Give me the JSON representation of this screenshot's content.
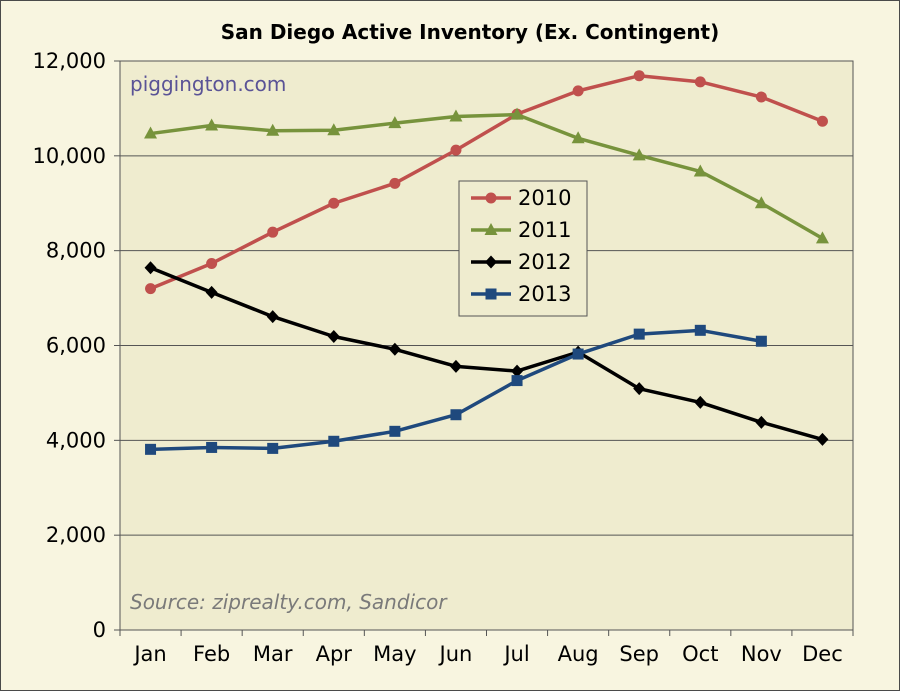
{
  "chart_data": {
    "type": "line",
    "title": "San Diego Active Inventory (Ex. Contingent)",
    "watermark": "piggington.com",
    "source_note": "Source: ziprealty.com, Sandicor",
    "categories": [
      "Jan",
      "Feb",
      "Mar",
      "Apr",
      "May",
      "Jun",
      "Jul",
      "Aug",
      "Sep",
      "Oct",
      "Nov",
      "Dec"
    ],
    "ylim": [
      0,
      12000
    ],
    "yticks": [
      0,
      2000,
      4000,
      6000,
      8000,
      10000,
      12000
    ],
    "ytick_labels": [
      "0",
      "2,000",
      "4,000",
      "6,000",
      "8,000",
      "10,000",
      "12,000"
    ],
    "grid": true,
    "legend_position": "center",
    "series": [
      {
        "name": "2010",
        "color": "#c0504d",
        "marker": "circle",
        "values": [
          7200,
          7730,
          8390,
          9000,
          9420,
          10120,
          10880,
          11370,
          11690,
          11560,
          11240,
          10730
        ]
      },
      {
        "name": "2011",
        "color": "#77933c",
        "marker": "triangle",
        "values": [
          10470,
          10640,
          10530,
          10540,
          10690,
          10830,
          10870,
          10370,
          10010,
          9670,
          9000,
          8260
        ]
      },
      {
        "name": "2012",
        "color": "#000000",
        "marker": "diamond",
        "values": [
          7640,
          7120,
          6610,
          6190,
          5920,
          5560,
          5460,
          5860,
          5090,
          4800,
          4380,
          4020
        ]
      },
      {
        "name": "2013",
        "color": "#1f497d",
        "marker": "square",
        "values": [
          3810,
          3850,
          3830,
          3980,
          4190,
          4540,
          5260,
          5820,
          6240,
          6320,
          6090,
          null
        ]
      }
    ]
  }
}
